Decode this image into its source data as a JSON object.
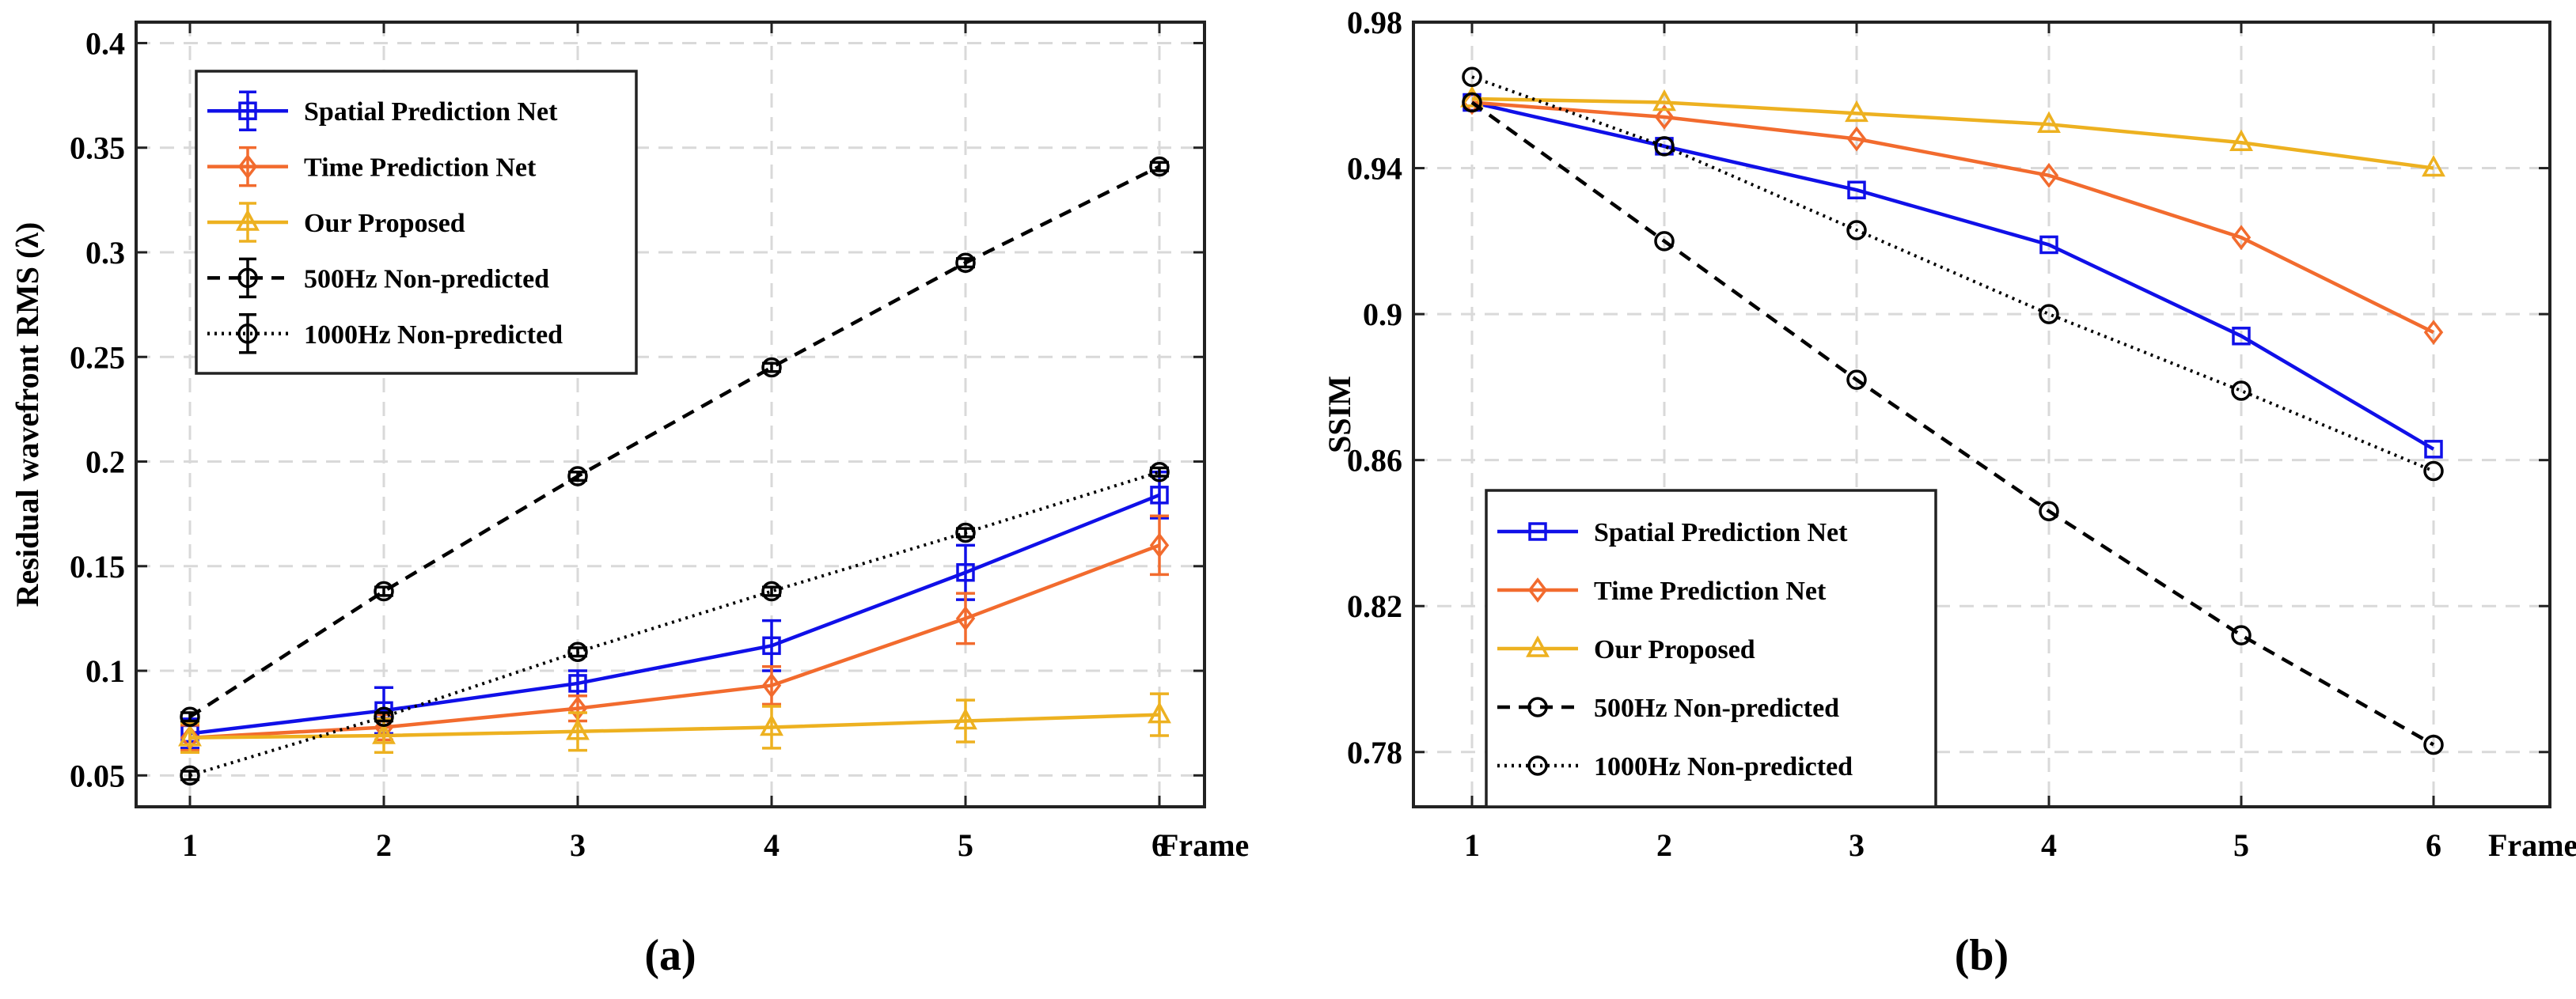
{
  "colors": {
    "spatial": "#1010e8",
    "time": "#f26b2e",
    "proposed": "#edb120",
    "black": "#000000",
    "grid": "#d9d9d9"
  },
  "chart_data": [
    {
      "type": "line",
      "panel_label": "(a)",
      "xlabel": "Frame",
      "ylabel": "Residual wavefront RMS (λ)",
      "x": [
        1,
        2,
        3,
        4,
        5,
        6
      ],
      "xticks": [
        "1",
        "2",
        "3",
        "4",
        "5",
        "6"
      ],
      "yticks": [
        "0.05",
        "0.1",
        "0.15",
        "0.2",
        "0.25",
        "0.3",
        "0.35",
        "0.4"
      ],
      "ylim": [
        0.035,
        0.41
      ],
      "grid": true,
      "legend_position": "top-left",
      "series": [
        {
          "name": "Spatial Prediction Net",
          "values": [
            0.07,
            0.081,
            0.094,
            0.112,
            0.147,
            0.184
          ],
          "errors": [
            0.007,
            0.011,
            0.006,
            0.012,
            0.013,
            0.011
          ],
          "marker": "square",
          "dash": "solid",
          "color_key": "spatial"
        },
        {
          "name": "Time Prediction Net",
          "values": [
            0.068,
            0.073,
            0.082,
            0.093,
            0.125,
            0.16
          ],
          "errors": [
            0.006,
            0.006,
            0.006,
            0.009,
            0.012,
            0.014
          ],
          "marker": "diamond",
          "dash": "solid",
          "color_key": "time"
        },
        {
          "name": "Our Proposed",
          "values": [
            0.068,
            0.069,
            0.071,
            0.073,
            0.076,
            0.079
          ],
          "errors": [
            0.007,
            0.008,
            0.009,
            0.01,
            0.01,
            0.01
          ],
          "marker": "triangle",
          "dash": "solid",
          "color_key": "proposed"
        },
        {
          "name": "500Hz Non-predicted",
          "values": [
            0.078,
            0.138,
            0.193,
            0.245,
            0.295,
            0.341
          ],
          "errors": [
            0.002,
            0.002,
            0.002,
            0.002,
            0.002,
            0.002
          ],
          "marker": "circle",
          "dash": "dashed",
          "color_key": "black"
        },
        {
          "name": "1000Hz Non-predicted",
          "values": [
            0.05,
            0.078,
            0.109,
            0.138,
            0.166,
            0.195
          ],
          "errors": [
            0.002,
            0.002,
            0.002,
            0.002,
            0.002,
            0.002
          ],
          "marker": "circle",
          "dash": "dotted",
          "color_key": "black"
        }
      ]
    },
    {
      "type": "line",
      "panel_label": "(b)",
      "xlabel": "Frame",
      "ylabel": "SSIM",
      "x": [
        1,
        2,
        3,
        4,
        5,
        6
      ],
      "xticks": [
        "1",
        "2",
        "3",
        "4",
        "5",
        "6"
      ],
      "yticks": [
        "0.78",
        "0.82",
        "0.86",
        "0.9",
        "0.94",
        "0.98"
      ],
      "ylim": [
        0.765,
        0.98
      ],
      "grid": true,
      "legend_position": "bottom-left",
      "series": [
        {
          "name": "Spatial Prediction Net",
          "values": [
            0.958,
            0.946,
            0.934,
            0.919,
            0.894,
            0.863
          ],
          "marker": "square",
          "dash": "solid",
          "color_key": "spatial"
        },
        {
          "name": "Time Prediction Net",
          "values": [
            0.958,
            0.954,
            0.948,
            0.938,
            0.921,
            0.895
          ],
          "marker": "diamond",
          "dash": "solid",
          "color_key": "time"
        },
        {
          "name": "Our Proposed",
          "values": [
            0.959,
            0.958,
            0.955,
            0.952,
            0.947,
            0.94
          ],
          "marker": "triangle",
          "dash": "solid",
          "color_key": "proposed"
        },
        {
          "name": "500Hz Non-predicted",
          "values": [
            0.958,
            0.92,
            0.882,
            0.846,
            0.812,
            0.782
          ],
          "marker": "circle",
          "dash": "dashed",
          "color_key": "black"
        },
        {
          "name": "1000Hz Non-predicted",
          "values": [
            0.965,
            0.946,
            0.923,
            0.9,
            0.879,
            0.857
          ],
          "marker": "circle",
          "dash": "dotted",
          "color_key": "black"
        }
      ]
    }
  ]
}
